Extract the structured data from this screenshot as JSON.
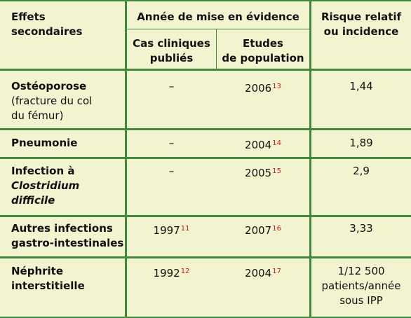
{
  "header": {
    "col1": [
      "Effets",
      "secondaires"
    ],
    "col_group": "Année de mise en évidence",
    "col2": [
      "Cas cliniques",
      "publiés"
    ],
    "col3": [
      "Etudes",
      "de population"
    ],
    "col4": [
      "Risque relatif",
      "ou incidence"
    ]
  },
  "rows": [
    {
      "effect": "Ostéoporose",
      "effect_sub": [
        "(fracture du col",
        "du fémur)"
      ],
      "cases": "–",
      "cases_ref": "",
      "pop_year": "2006",
      "pop_ref": "13",
      "risk": [
        "1,44"
      ]
    },
    {
      "effect": "Pneumonie",
      "cases": "–",
      "cases_ref": "",
      "pop_year": "2004",
      "pop_ref": "14",
      "risk": [
        "1,89"
      ]
    },
    {
      "effect": "Infection à",
      "effect_italic": [
        "Clostridium",
        "difficile"
      ],
      "cases": "–",
      "cases_ref": "",
      "pop_year": "2005",
      "pop_ref": "15",
      "risk": [
        "2,9"
      ]
    },
    {
      "effect_lines": [
        "Autres infections",
        "gastro-intestinales"
      ],
      "cases": "1997",
      "cases_ref": "11",
      "pop_year": "2007",
      "pop_ref": "16",
      "risk": [
        "3,33"
      ]
    },
    {
      "effect_lines": [
        "Néphrite",
        "interstitielle"
      ],
      "cases": "1992",
      "cases_ref": "12",
      "pop_year": "2004",
      "pop_ref": "17",
      "risk": [
        "1/12 500",
        "patients/année",
        "sous IPP"
      ]
    }
  ],
  "colors": {
    "background": "#f2f3cf",
    "rule": "#3f8a3c",
    "reference": "#d4141a"
  }
}
